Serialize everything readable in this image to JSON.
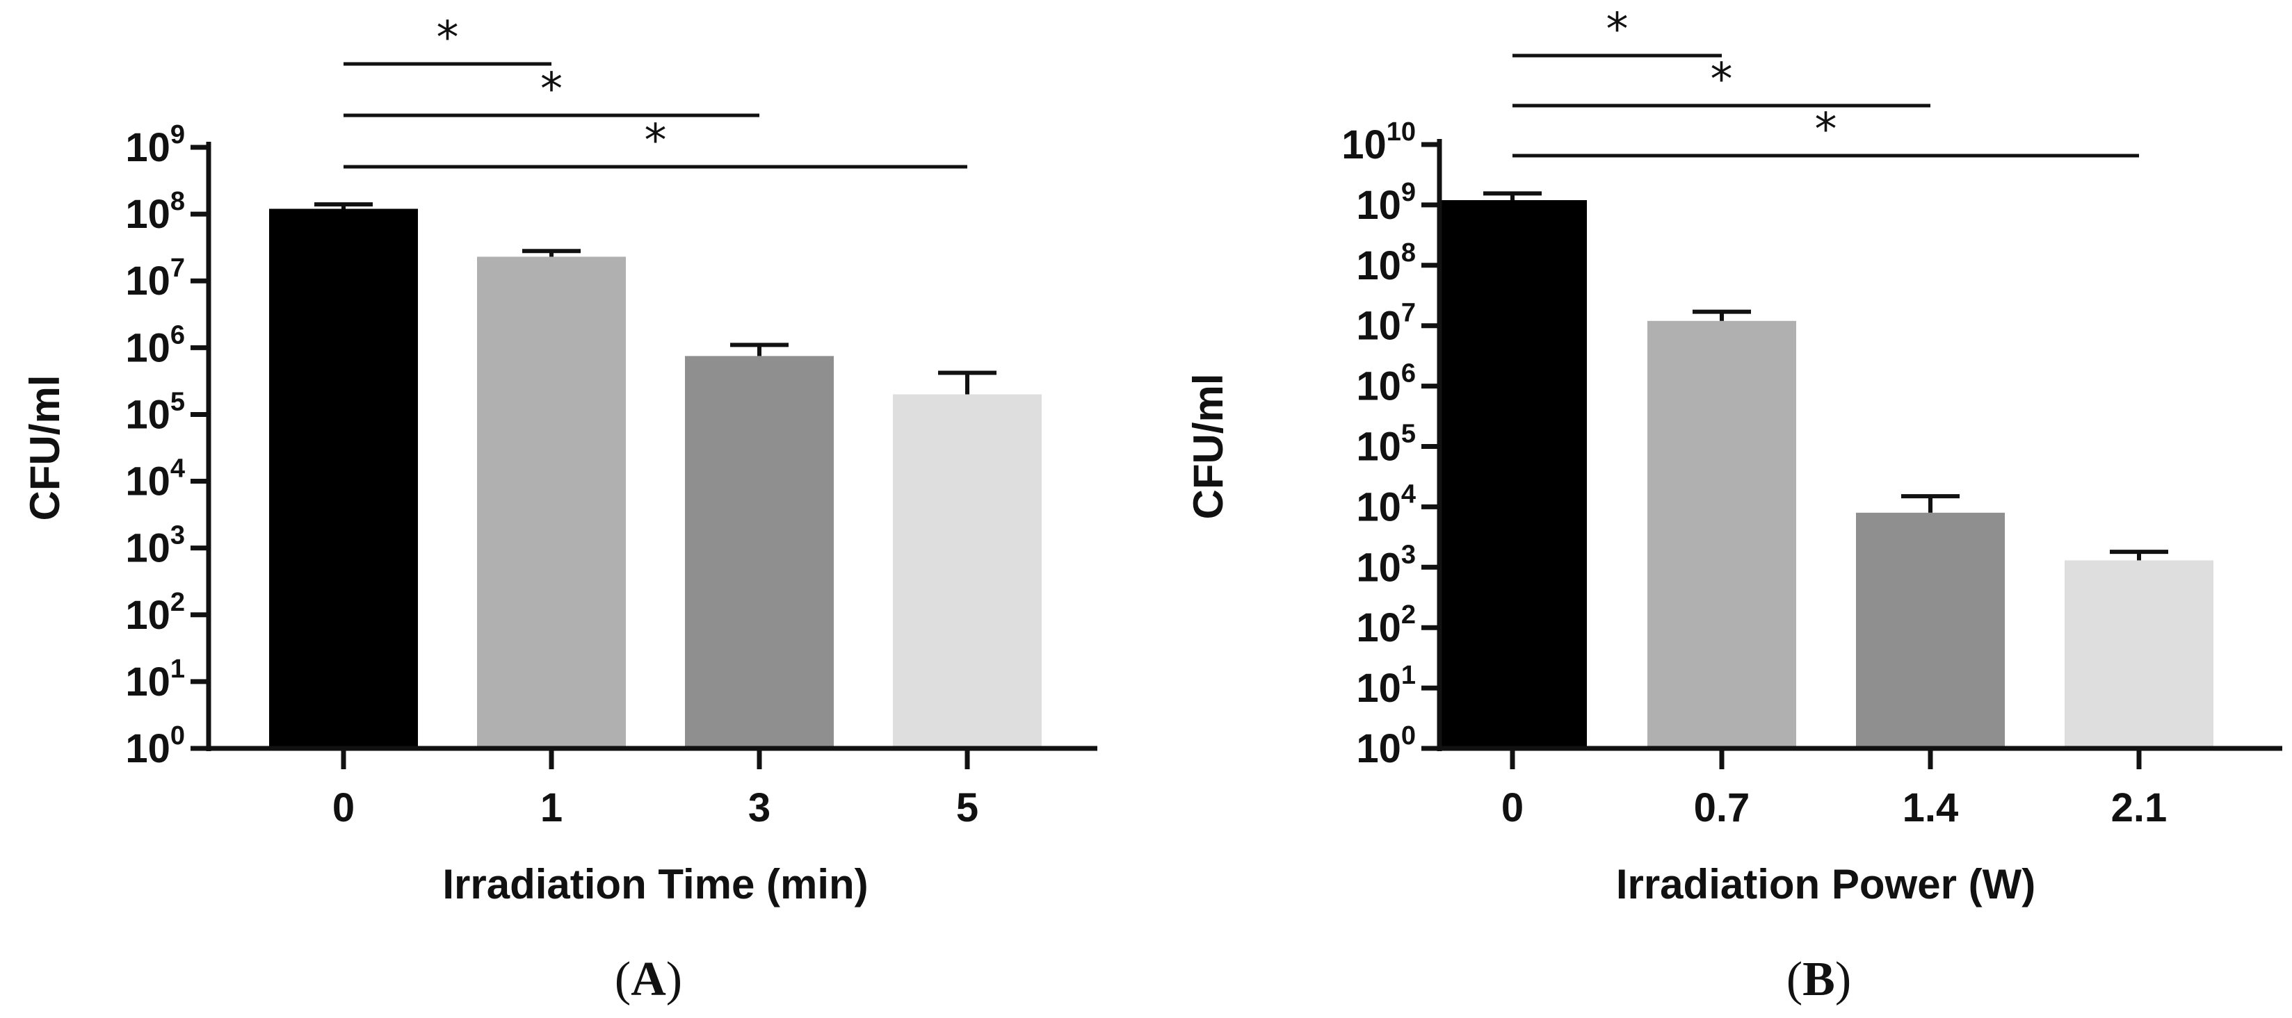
{
  "chart_data": [
    {
      "type": "bar",
      "panel_label": "A",
      "title": "",
      "xlabel": "Irradiation Time (min)",
      "ylabel": "CFU/ml",
      "yscale": "log10",
      "ylim": [
        1,
        1000000000
      ],
      "y_tick_base": "10",
      "y_tick_exponents": [
        "0",
        "1",
        "2",
        "3",
        "4",
        "5",
        "6",
        "7",
        "8",
        "9"
      ],
      "categories": [
        "0",
        "1",
        "3",
        "5"
      ],
      "values": [
        120000000,
        23000000,
        750000,
        200000
      ],
      "error_upper": [
        140000000,
        28000000,
        1100000,
        420000
      ],
      "bar_colors": [
        "#000000",
        "#b0b0b0",
        "#8f8f8f",
        "#dedede"
      ],
      "significance": [
        {
          "from": "0",
          "to": "1",
          "label": "*"
        },
        {
          "from": "0",
          "to": "3",
          "label": "*"
        },
        {
          "from": "0",
          "to": "5",
          "label": "*"
        }
      ]
    },
    {
      "type": "bar",
      "panel_label": "B",
      "title": "",
      "xlabel": "Irradiation Power (W)",
      "ylabel": "CFU/ml",
      "yscale": "log10",
      "ylim": [
        1,
        10000000000
      ],
      "y_tick_base": "10",
      "y_tick_exponents": [
        "0",
        "1",
        "2",
        "3",
        "4",
        "5",
        "6",
        "7",
        "8",
        "9",
        "10"
      ],
      "categories": [
        "0",
        "0.7",
        "1.4",
        "2.1"
      ],
      "values": [
        1200000000,
        12000000,
        8000,
        1300
      ],
      "error_upper": [
        1550000000,
        17000000,
        15000,
        1800
      ],
      "bar_colors": [
        "#000000",
        "#b0b0b0",
        "#8f8f8f",
        "#dedede"
      ],
      "significance": [
        {
          "from": "0",
          "to": "0.7",
          "label": "*"
        },
        {
          "from": "0",
          "to": "1.4",
          "label": "*"
        },
        {
          "from": "0",
          "to": "2.1",
          "label": "*"
        }
      ]
    }
  ]
}
